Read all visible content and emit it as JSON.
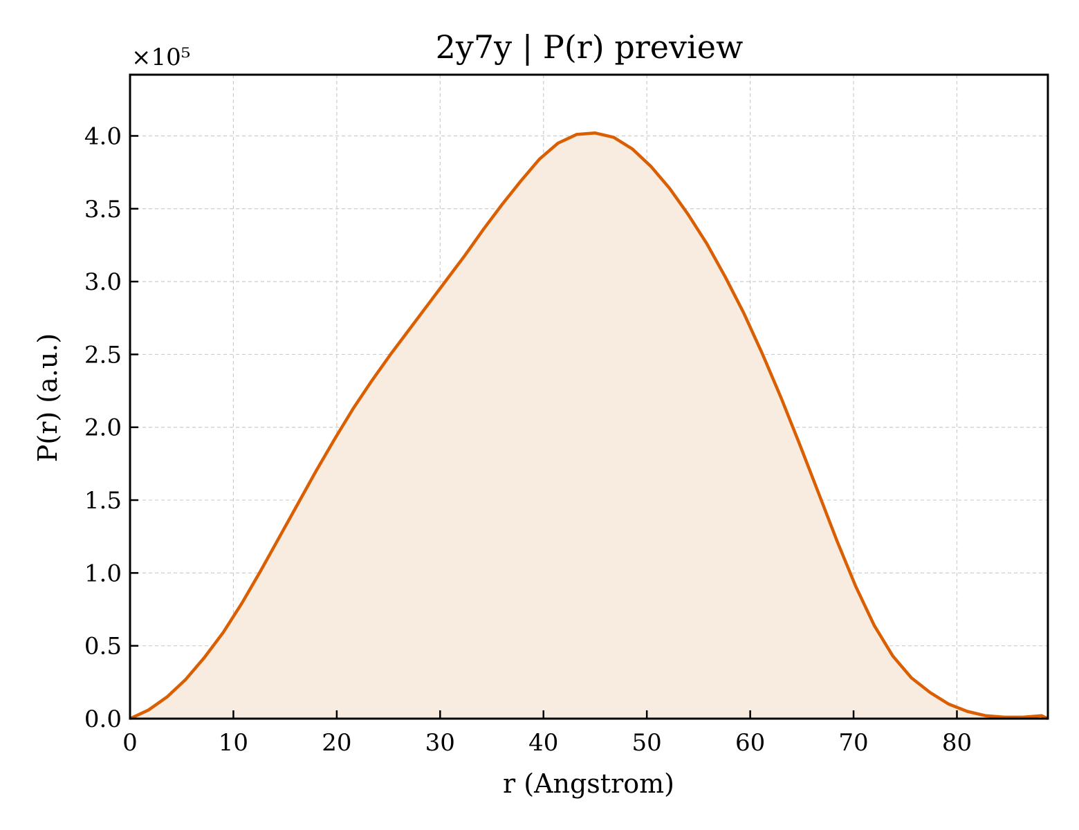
{
  "chart_data": {
    "type": "area",
    "title": "2y7y | P(r) preview",
    "xlabel": "r (Angstrom)",
    "ylabel": "P(r) (a.u.)",
    "y_multiplier_label": "×10⁵",
    "xlim": [
      0,
      88.8
    ],
    "ylim": [
      0,
      4.42
    ],
    "xticks": [
      0,
      10,
      20,
      30,
      40,
      50,
      60,
      70,
      80
    ],
    "xtick_labels": [
      "0",
      "10",
      "20",
      "30",
      "40",
      "50",
      "60",
      "70",
      "80"
    ],
    "yticks": [
      0,
      0.5,
      1.0,
      1.5,
      2.0,
      2.5,
      3.0,
      3.5,
      4.0
    ],
    "ytick_labels": [
      "0.0",
      "0.5",
      "1.0",
      "1.5",
      "2.0",
      "2.5",
      "3.0",
      "3.5",
      "4.0"
    ],
    "grid": true,
    "line_color": "#d95f02",
    "fill_color": "#f8ebe0",
    "series": [
      {
        "x": [
          0,
          1.8,
          3.6,
          5.4,
          7.2,
          9.0,
          10.8,
          12.6,
          14.4,
          16.2,
          18.0,
          19.8,
          21.6,
          23.4,
          25.2,
          27.0,
          28.8,
          30.6,
          32.4,
          34.2,
          36.0,
          37.8,
          39.6,
          41.4,
          43.2,
          45.0,
          46.8,
          48.6,
          50.4,
          52.2,
          54.0,
          55.8,
          57.6,
          59.4,
          61.2,
          63.0,
          64.8,
          66.6,
          68.4,
          70.2,
          72.0,
          73.8,
          75.6,
          77.4,
          79.2,
          81.0,
          82.8,
          84.6,
          86.4,
          88.2,
          88.8
        ],
        "values": [
          0,
          0.06,
          0.15,
          0.27,
          0.42,
          0.59,
          0.79,
          1.01,
          1.24,
          1.47,
          1.7,
          1.92,
          2.13,
          2.32,
          2.5,
          2.67,
          2.84,
          3.01,
          3.18,
          3.36,
          3.53,
          3.69,
          3.84,
          3.95,
          4.01,
          4.02,
          3.99,
          3.91,
          3.79,
          3.64,
          3.46,
          3.26,
          3.03,
          2.78,
          2.5,
          2.2,
          1.88,
          1.55,
          1.22,
          0.91,
          0.64,
          0.43,
          0.28,
          0.18,
          0.1,
          0.05,
          0.02,
          0.01,
          0.01,
          0.02,
          0.0
        ]
      }
    ]
  }
}
